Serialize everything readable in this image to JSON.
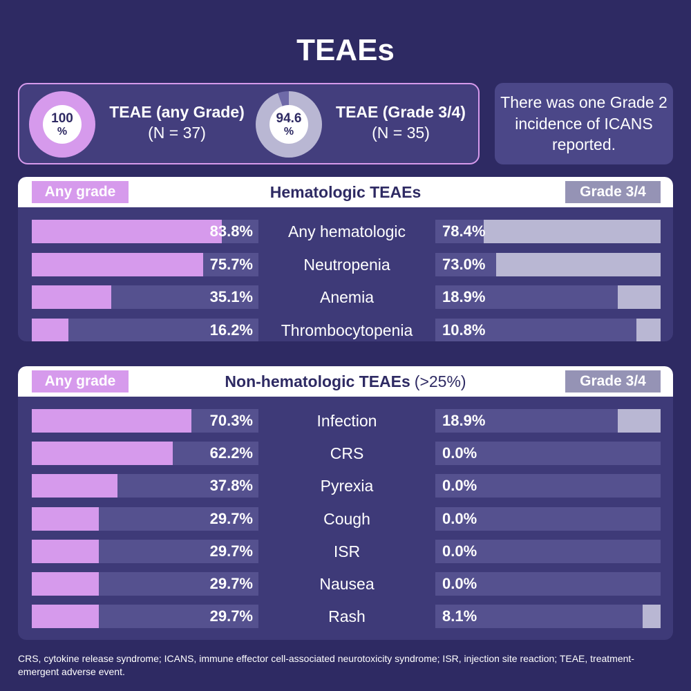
{
  "title": "TEAEs",
  "summary": {
    "any": {
      "value": "100",
      "unit": "%",
      "fraction": 1.0,
      "label": "TEAE (any Grade)",
      "n": "(N = 37)"
    },
    "g34": {
      "value": "94.6",
      "unit": "%",
      "fraction": 0.946,
      "label": "TEAE (Grade 3/4)",
      "n": "(N = 35)"
    }
  },
  "note": "There was one Grade 2 incidence of ICANS reported.",
  "colors": {
    "any_grade": "#d69aec",
    "grade34": "#b9b7d3",
    "track": "#55518f",
    "background": "#2e2a63"
  },
  "chart_data": [
    {
      "type": "bar",
      "title": "Hematologic TEAEs",
      "subtitle": "",
      "left_label": "Any grade",
      "right_label": "Grade 3/4",
      "xlim": [
        0,
        100
      ],
      "categories": [
        "Any hematologic",
        "Neutropenia",
        "Anemia",
        "Thrombocytopenia"
      ],
      "series": [
        {
          "name": "Any grade",
          "values": [
            83.8,
            75.7,
            35.1,
            16.2
          ]
        },
        {
          "name": "Grade 3/4",
          "values": [
            78.4,
            73.0,
            18.9,
            10.8
          ]
        }
      ]
    },
    {
      "type": "bar",
      "title": "Non-hematologic TEAEs",
      "subtitle": "(>25%)",
      "left_label": "Any grade",
      "right_label": "Grade 3/4",
      "xlim": [
        0,
        100
      ],
      "categories": [
        "Infection",
        "CRS",
        "Pyrexia",
        "Cough",
        "ISR",
        "Nausea",
        "Rash"
      ],
      "series": [
        {
          "name": "Any grade",
          "values": [
            70.3,
            62.2,
            37.8,
            29.7,
            29.7,
            29.7,
            29.7
          ]
        },
        {
          "name": "Grade 3/4",
          "values": [
            18.9,
            0.0,
            0.0,
            0.0,
            0.0,
            0.0,
            8.1
          ]
        }
      ]
    }
  ],
  "footnote": "CRS, cytokine release syndrome; ICANS, immune effector cell-associated neurotoxicity syndrome; ISR, injection site reaction; TEAE, treatment-emergent adverse event."
}
